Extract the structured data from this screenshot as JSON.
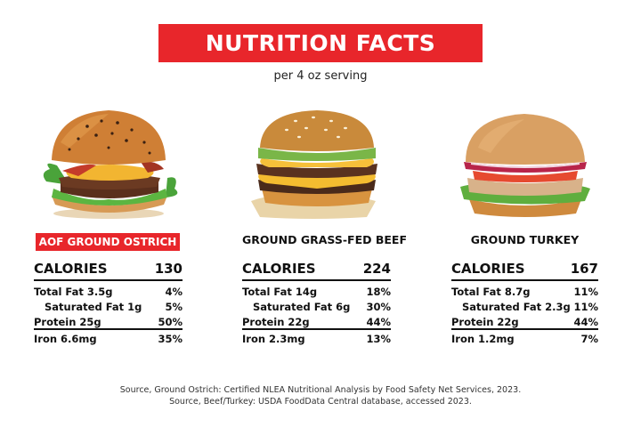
{
  "title": "NUTRITION FACTS",
  "subtitle": "per 4 oz serving",
  "products": [
    {
      "name": "AOF GROUND OSTRICH",
      "calories_label": "CALORIES",
      "calories": "130",
      "rows": [
        {
          "label": "Total Fat 3.5g",
          "value": "4%"
        },
        {
          "label": "Saturated Fat 1g",
          "value": "5%"
        },
        {
          "label": "Protein 25g",
          "value": "50%"
        },
        {
          "label": "Iron 6.6mg",
          "value": "35%"
        }
      ]
    },
    {
      "name": "GROUND GRASS-FED BEEF",
      "calories_label": "CALORIES",
      "calories": "224",
      "rows": [
        {
          "label": "Total Fat 14g",
          "value": "18%"
        },
        {
          "label": "Saturated Fat 6g",
          "value": "30%"
        },
        {
          "label": "Protein 22g",
          "value": "44%"
        },
        {
          "label": "Iron 2.3mg",
          "value": "13%"
        }
      ]
    },
    {
      "name": "GROUND TURKEY",
      "calories_label": "CALORIES",
      "calories": "167",
      "rows": [
        {
          "label": "Total Fat 8.7g",
          "value": "11%"
        },
        {
          "label": "Saturated Fat 2.3g",
          "value": "11%"
        },
        {
          "label": "Protein 22g",
          "value": "44%"
        },
        {
          "label": "Iron 1.2mg",
          "value": "7%"
        }
      ]
    }
  ],
  "source_lines": [
    "Source, Ground Ostrich: Certified NLEA Nutritional Analysis by Food Safety Net Services, 2023.",
    "Source, Beef/Turkey: USDA FoodData Central database, accessed 2023."
  ],
  "colors": {
    "accent": "#e8262b",
    "text": "#111111"
  }
}
